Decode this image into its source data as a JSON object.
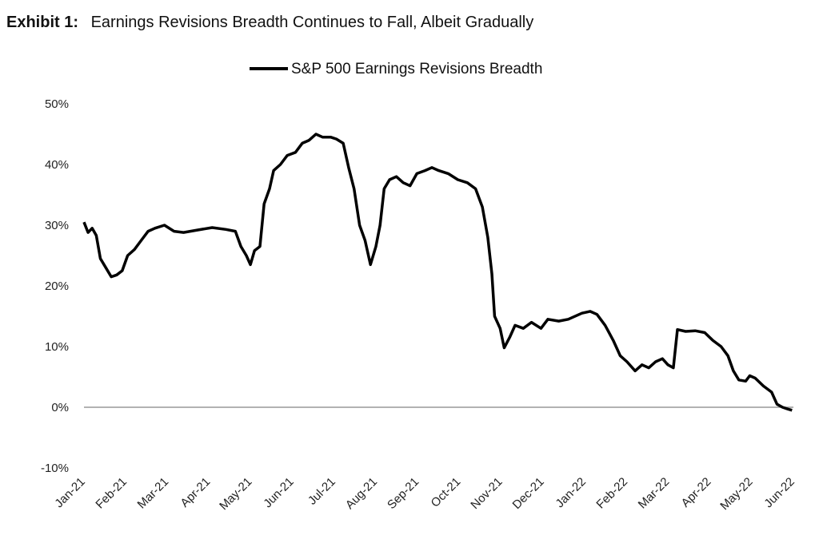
{
  "exhibit": {
    "label": "Exhibit 1:",
    "title": "Earnings Revisions Breadth Continues to Fall, Albeit Gradually"
  },
  "chart_data": {
    "type": "line",
    "title": "Earnings Revisions Breadth Continues to Fall, Albeit Gradually",
    "xlabel": "",
    "ylabel": "",
    "ylim": [
      -10,
      50
    ],
    "y_ticks": [
      "50%",
      "40%",
      "30%",
      "20%",
      "10%",
      "0%",
      "-10%"
    ],
    "x_ticks": [
      "Jan-21",
      "Feb-21",
      "Mar-21",
      "Apr-21",
      "May-21",
      "Jun-21",
      "Jul-21",
      "Aug-21",
      "Sep-21",
      "Oct-21",
      "Nov-21",
      "Dec-21",
      "Jan-22",
      "Feb-22",
      "Mar-22",
      "Apr-22",
      "May-22",
      "Jun-22"
    ],
    "legend": "top-center",
    "grid": false,
    "series": [
      {
        "name": "S&P 500 Earnings Revisions Breadth",
        "color": "#000000",
        "points": [
          [
            "2021-01-01",
            30.5
          ],
          [
            "2021-01-04",
            28.8
          ],
          [
            "2021-01-07",
            29.5
          ],
          [
            "2021-01-10",
            28.3
          ],
          [
            "2021-01-13",
            24.5
          ],
          [
            "2021-01-17",
            23.0
          ],
          [
            "2021-01-21",
            21.5
          ],
          [
            "2021-01-25",
            21.8
          ],
          [
            "2021-01-29",
            22.5
          ],
          [
            "2021-02-02",
            25.0
          ],
          [
            "2021-02-07",
            26.0
          ],
          [
            "2021-02-12",
            27.5
          ],
          [
            "2021-02-17",
            29.0
          ],
          [
            "2021-02-22",
            29.5
          ],
          [
            "2021-03-01",
            30.0
          ],
          [
            "2021-03-08",
            29.0
          ],
          [
            "2021-03-15",
            28.8
          ],
          [
            "2021-03-25",
            29.2
          ],
          [
            "2021-04-05",
            29.6
          ],
          [
            "2021-04-15",
            29.3
          ],
          [
            "2021-04-22",
            29.0
          ],
          [
            "2021-04-26",
            26.5
          ],
          [
            "2021-04-30",
            25.0
          ],
          [
            "2021-05-03",
            23.5
          ],
          [
            "2021-05-06",
            25.8
          ],
          [
            "2021-05-10",
            26.5
          ],
          [
            "2021-05-13",
            33.5
          ],
          [
            "2021-05-17",
            36.0
          ],
          [
            "2021-05-20",
            39.0
          ],
          [
            "2021-05-25",
            40.0
          ],
          [
            "2021-05-30",
            41.5
          ],
          [
            "2021-06-05",
            42.0
          ],
          [
            "2021-06-10",
            43.5
          ],
          [
            "2021-06-15",
            44.0
          ],
          [
            "2021-06-20",
            45.0
          ],
          [
            "2021-06-25",
            44.5
          ],
          [
            "2021-07-01",
            44.5
          ],
          [
            "2021-07-05",
            44.2
          ],
          [
            "2021-07-10",
            43.5
          ],
          [
            "2021-07-14",
            39.5
          ],
          [
            "2021-07-18",
            36.0
          ],
          [
            "2021-07-22",
            30.0
          ],
          [
            "2021-07-26",
            27.5
          ],
          [
            "2021-07-30",
            23.5
          ],
          [
            "2021-08-03",
            26.5
          ],
          [
            "2021-08-06",
            30.0
          ],
          [
            "2021-08-09",
            36.0
          ],
          [
            "2021-08-13",
            37.5
          ],
          [
            "2021-08-18",
            38.0
          ],
          [
            "2021-08-23",
            37.0
          ],
          [
            "2021-08-28",
            36.5
          ],
          [
            "2021-09-02",
            38.5
          ],
          [
            "2021-09-08",
            39.0
          ],
          [
            "2021-09-13",
            39.5
          ],
          [
            "2021-09-18",
            39.0
          ],
          [
            "2021-09-25",
            38.5
          ],
          [
            "2021-10-02",
            37.5
          ],
          [
            "2021-10-09",
            37.0
          ],
          [
            "2021-10-15",
            36.0
          ],
          [
            "2021-10-20",
            33.0
          ],
          [
            "2021-10-24",
            28.0
          ],
          [
            "2021-10-27",
            22.0
          ],
          [
            "2021-10-29",
            15.0
          ],
          [
            "2021-11-02",
            13.0
          ],
          [
            "2021-11-05",
            9.8
          ],
          [
            "2021-11-09",
            11.5
          ],
          [
            "2021-11-13",
            13.5
          ],
          [
            "2021-11-19",
            13.0
          ],
          [
            "2021-11-25",
            14.0
          ],
          [
            "2021-12-02",
            13.0
          ],
          [
            "2021-12-07",
            14.5
          ],
          [
            "2021-12-15",
            14.2
          ],
          [
            "2021-12-22",
            14.5
          ],
          [
            "2022-01-01",
            15.5
          ],
          [
            "2022-01-07",
            15.8
          ],
          [
            "2022-01-12",
            15.3
          ],
          [
            "2022-01-18",
            13.5
          ],
          [
            "2022-01-24",
            11.0
          ],
          [
            "2022-01-29",
            8.5
          ],
          [
            "2022-02-03",
            7.5
          ],
          [
            "2022-02-09",
            6.0
          ],
          [
            "2022-02-14",
            7.0
          ],
          [
            "2022-02-19",
            6.5
          ],
          [
            "2022-02-24",
            7.5
          ],
          [
            "2022-03-01",
            8.0
          ],
          [
            "2022-03-05",
            7.0
          ],
          [
            "2022-03-09",
            6.5
          ],
          [
            "2022-03-12",
            12.8
          ],
          [
            "2022-03-18",
            12.5
          ],
          [
            "2022-03-25",
            12.6
          ],
          [
            "2022-04-01",
            12.3
          ],
          [
            "2022-04-07",
            11.0
          ],
          [
            "2022-04-13",
            10.0
          ],
          [
            "2022-04-18",
            8.5
          ],
          [
            "2022-04-22",
            6.0
          ],
          [
            "2022-04-26",
            4.5
          ],
          [
            "2022-05-01",
            4.3
          ],
          [
            "2022-05-04",
            5.2
          ],
          [
            "2022-05-08",
            4.8
          ],
          [
            "2022-05-14",
            3.5
          ],
          [
            "2022-05-20",
            2.5
          ],
          [
            "2022-05-24",
            0.5
          ],
          [
            "2022-05-28",
            0.0
          ],
          [
            "2022-06-01",
            -0.3
          ],
          [
            "2022-06-04",
            -0.5
          ]
        ]
      }
    ]
  }
}
